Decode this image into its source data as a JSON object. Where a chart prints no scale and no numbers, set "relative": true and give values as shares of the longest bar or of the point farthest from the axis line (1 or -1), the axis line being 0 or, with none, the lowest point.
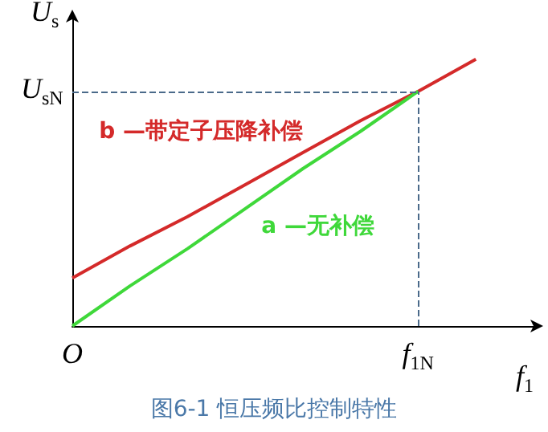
{
  "chart_data": {
    "type": "line",
    "relative": true,
    "title": "图6-1 恒压频比控制特性",
    "xlabel": "f$_{1}$",
    "ylabel": "U$_{s}$",
    "categories": [
      "O",
      null,
      null,
      null,
      null,
      null,
      "f$_{1N}$",
      null,
      null
    ],
    "series": [
      {
        "name": "b —带定子压降补偿",
        "color": "#d42a2a",
        "values": [
          0.18,
          0.3,
          0.41,
          0.53,
          0.65,
          0.77,
          0.88,
          1,
          null
        ]
      },
      {
        "name": "a —无补偿",
        "color": "#3fd83a",
        "values": [
          0,
          0.15,
          0.29,
          0.44,
          0.59,
          0.73,
          0.88,
          null,
          null
        ]
      }
    ],
    "ref_lines": [
      {
        "axis": "y",
        "value": 0.88,
        "label": "U$_{sN}$",
        "color": "#4a6a8a",
        "line_style": "dashed"
      },
      {
        "axis": "x",
        "value": "f$_{1N}$",
        "color": "#4a6a8a",
        "line_style": "dashed"
      }
    ],
    "marker": "none",
    "legend": false,
    "grid": false
  }
}
